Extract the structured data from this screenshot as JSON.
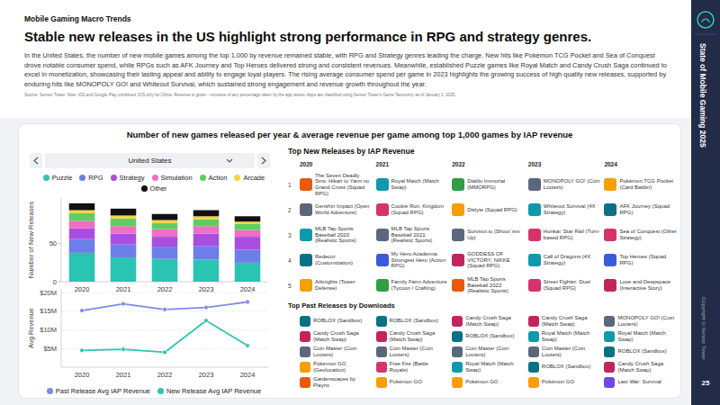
{
  "header": {
    "section": "Mobile Gaming Macro Trends",
    "title": "Stable new releases in the US highlight strong performance in RPG and strategy genres.",
    "body": "In the United States, the number of new mobile games among the top 1,000 by revenue remained stable, with RPG and Strategy genres leading the charge. New hits like Pokémon TCG Pocket and Sea of Conquest drove notable consumer spend, while RPGs such as AFK Journey and Top Heroes delivered strong and consistent revenues. Meanwhile, established Puzzle games like Royal Match and Candy Crush Saga continued to excel in monetization, showcasing their lasting appeal and ability to engage loyal players. The rising average consumer spend per game in 2023 highlights the growing success of high quality new releases, supported by enduring hits like MONOPOLY GO! and Whiteout Survival, which sustained strong engagement and revenue growth throughout the year.",
    "source": "Source: Sensor Tower. Note: iOS and Google Play combined. iOS only for China. Revenue is gross – inclusive of any percentage taken by the app stores. Apps are classified using Sensor Tower's Game Taxonomy as of January 1, 2025."
  },
  "sidebar": {
    "report": "State of Mobile Gaming 2025",
    "copyright": "Copyright ©Sensor Tower",
    "page": "25"
  },
  "panel": {
    "title": "Number of new games released per year & average revenue per game among top 1,000 games by IAP revenue",
    "filter": "United States"
  },
  "chart_data": [
    {
      "type": "bar",
      "stacked": true,
      "ylabel": "Number of New Releases",
      "categories": [
        "2020",
        "2021",
        "2022",
        "2023",
        "2024"
      ],
      "series": [
        {
          "name": "Puzzle",
          "color": "#2ac4b3",
          "values": [
            38,
            32,
            30,
            29,
            25
          ]
        },
        {
          "name": "RPG",
          "color": "#6c7ee8",
          "values": [
            18,
            17,
            16,
            18,
            17
          ]
        },
        {
          "name": "Strategy",
          "color": "#a94ee0",
          "values": [
            14,
            14,
            13,
            16,
            17
          ]
        },
        {
          "name": "Simulation",
          "color": "#ee6fc4",
          "values": [
            10,
            10,
            10,
            10,
            9
          ]
        },
        {
          "name": "Action",
          "color": "#5fce62",
          "values": [
            10,
            10,
            8,
            9,
            8
          ]
        },
        {
          "name": "Arcade",
          "color": "#f3d53f",
          "values": [
            4,
            4,
            4,
            4,
            3
          ]
        },
        {
          "name": "Other",
          "color": "#111111",
          "values": [
            9,
            9,
            8,
            8,
            7
          ]
        }
      ],
      "ylim": [
        0,
        110
      ],
      "yticks": [
        0,
        50
      ],
      "grid": false,
      "legend": "top"
    },
    {
      "type": "line",
      "ylabel": "Avg Revenue",
      "categories": [
        "2020",
        "2021",
        "2022",
        "2023",
        "2024"
      ],
      "series": [
        {
          "name": "Past Release Avg IAP Revenue",
          "color": "#7f88e8",
          "marker": "circle",
          "values": [
            15.2,
            17,
            15.5,
            16,
            17.5
          ]
        },
        {
          "name": "New Release Avg IAP Revenue",
          "color": "#2cc5b1",
          "marker": "circle",
          "values": [
            4.5,
            4.8,
            4,
            12.5,
            5.8
          ]
        }
      ],
      "ylim": [
        0,
        21
      ],
      "yticks": [
        {
          "value": 5,
          "label": "$5M"
        },
        {
          "value": 10,
          "label": "$10M"
        },
        {
          "value": 15,
          "label": "$15M"
        },
        {
          "value": 20,
          "label": "$20M"
        }
      ],
      "grid": true,
      "legend": "bottom"
    }
  ],
  "top_new": {
    "title": "Top New Releases by IAP Revenue",
    "years": [
      "2020",
      "2021",
      "2022",
      "2023",
      "2024"
    ],
    "ranks": [
      "1",
      "2",
      "3",
      "4",
      "5"
    ],
    "columns": [
      [
        "The Seven Deadly Sins: Hikari to Yami no Grand Cross (Squad RPG)",
        "Genshin Impact (Open World Adventure)",
        "MLB Tap Sports Baseball 2020 (Realistic Sports)",
        "Redecor (Customization)",
        "Arknights (Tower Defense)"
      ],
      [
        "Royal Match (Match Swap)",
        "Cookie Run: Kingdom (Squad RPG)",
        "MLB Tap Sports Baseball 2021 (Realistic Sports)",
        "My Hero Academia: Strongest Hero (Action RPG)",
        "Family Farm Adventure (Tycoon / Crafting)"
      ],
      [
        "Diablo Immortal (MMORPG)",
        "Dislyte (Squad RPG)",
        "Survivor.io (Shoot 'em Up)",
        "GODDESS OF VICTORY: NIKKE (Squad RPG)",
        "MLB Tap Sports Baseball 2022 (Realistic Sports)"
      ],
      [
        "MONOPOLY GO! (Coin Looters)",
        "Whiteout Survival (4X Strategy)",
        "Honkai: Star Rail (Turn-based RPG)",
        "Call of Dragons (4X Strategy)",
        "Street Fighter: Duel (Squad RPG)"
      ],
      [
        "Pokémon TCG Pocket (Card Battler)",
        "AFK Journey (Squad RPG)",
        "Sea of Conquest (Other Strategy)",
        "Top Heroes (Squad RPG)",
        "Love and Deepspace (Interactive Story)"
      ]
    ]
  },
  "top_past": {
    "title": "Top Past Releases by Downloads",
    "columns": [
      [
        "ROBLOX (Sandbox)",
        "Candy Crush Saga (Match Swap)",
        "Coin Master (Coin Looters)",
        "Pokémon GO (Geolocation)",
        "Gardenscapes by Playrix"
      ],
      [
        "ROBLOX (Sandbox)",
        "Candy Crush Saga (Match Swap)",
        "Coin Master (Coin Looters)",
        "Free Fire (Battle Royale)",
        "Pokémon GO"
      ],
      [
        "Candy Crush Saga (Match Swap)",
        "ROBLOX (Sandbox)",
        "Coin Master (Coin Looters)",
        "Royal Match (Match Swap)",
        "Pokémon GO"
      ],
      [
        "Candy Crush Saga (Match Swap)",
        "Royal Match (Match Swap)",
        "Coin Master (Coin Looters)",
        "ROBLOX (Sandbox)",
        "Pokémon GO"
      ],
      [
        "MONOPOLY GO! (Coin Looters)",
        "Royal Match (Match Swap)",
        "ROBLOX (Sandbox)",
        "Candy Crush Saga (Match Swap)",
        "Last War: Survival"
      ]
    ]
  }
}
